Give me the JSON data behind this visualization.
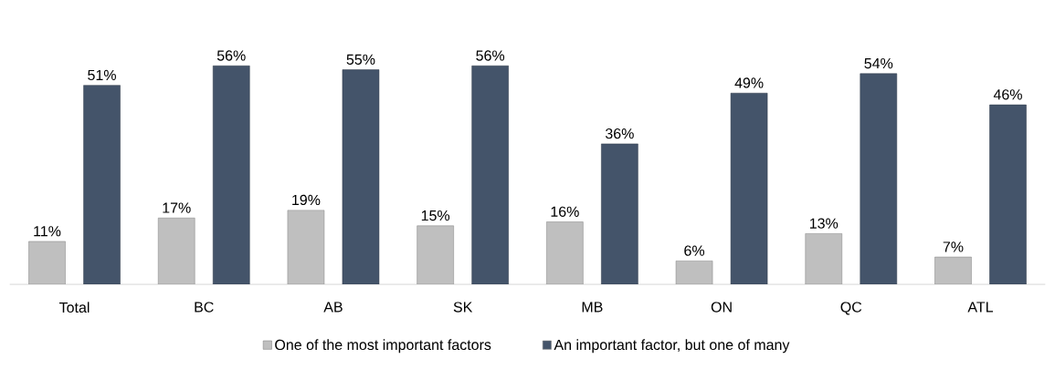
{
  "chart_data": {
    "type": "bar",
    "categories": [
      "Total",
      "BC",
      "AB",
      "SK",
      "MB",
      "ON",
      "QC",
      "ATL"
    ],
    "series": [
      {
        "name": "One of the most important factors",
        "color": "#bfbfbf",
        "values": [
          11,
          17,
          19,
          15,
          16,
          6,
          13,
          7
        ],
        "value_labels": [
          "11%",
          "17%",
          "19%",
          "15%",
          "16%",
          "6%",
          "13%",
          "7%"
        ]
      },
      {
        "name": "An important factor, but one of many",
        "color": "#44546a",
        "values": [
          51,
          56,
          55,
          56,
          36,
          49,
          54,
          46
        ],
        "value_labels": [
          "51%",
          "56%",
          "55%",
          "56%",
          "36%",
          "49%",
          "54%",
          "46%"
        ]
      }
    ],
    "legend": "bottom"
  }
}
